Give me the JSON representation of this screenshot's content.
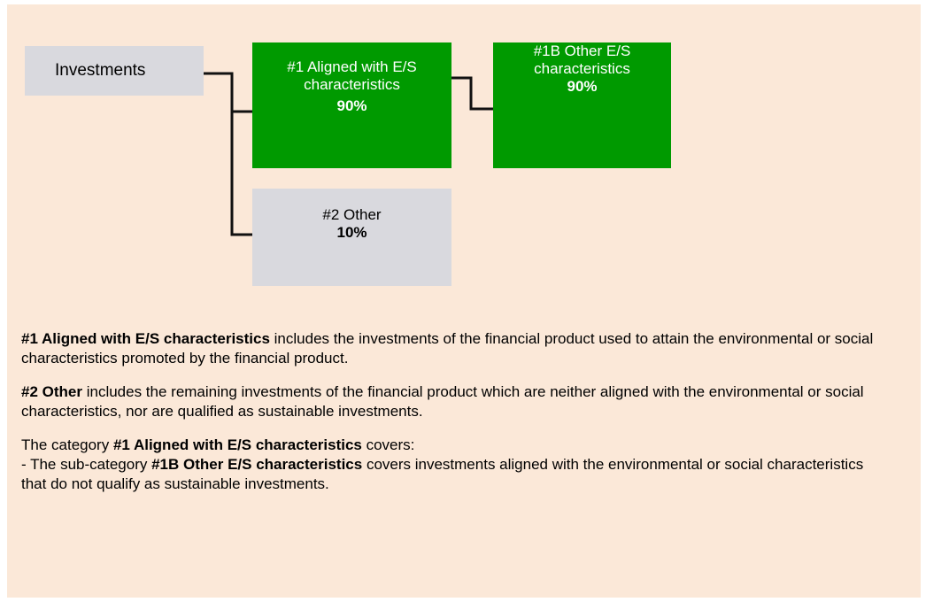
{
  "nodes": [
    {
      "label": "Investments"
    },
    {
      "label": "#1 Aligned with E/S characteristics",
      "value": "90%"
    },
    {
      "label": "#1B Other E/S characteristics",
      "value": "90%"
    },
    {
      "label": "#2 Other",
      "value": "10%"
    }
  ],
  "notes": [
    {
      "lines": [
        [
          {
            "text": "#1 Aligned with E/S characteristics",
            "bold": true
          },
          {
            "text": " includes the investments of the financial product used to attain the environmental or social characteristics promoted by the financial product."
          }
        ]
      ]
    },
    {
      "lines": [
        [
          {
            "text": "#2 Other",
            "bold": true
          },
          {
            "text": " includes the remaining investments of the financial product which are neither aligned with the environmental or social characteristics, nor are qualified as sustainable investments."
          }
        ]
      ]
    },
    {
      "lines": [
        [
          {
            "text": "The category "
          },
          {
            "text": "#1 Aligned with E/S characteristics",
            "bold": true
          },
          {
            "text": " covers:"
          }
        ],
        [
          {
            "text": "- The sub-category "
          },
          {
            "text": "#1B Other E/S characteristics",
            "bold": true
          },
          {
            "text": " covers investments aligned with the environmental or social characteristics that do not qualify as sustainable investments."
          }
        ]
      ]
    }
  ]
}
